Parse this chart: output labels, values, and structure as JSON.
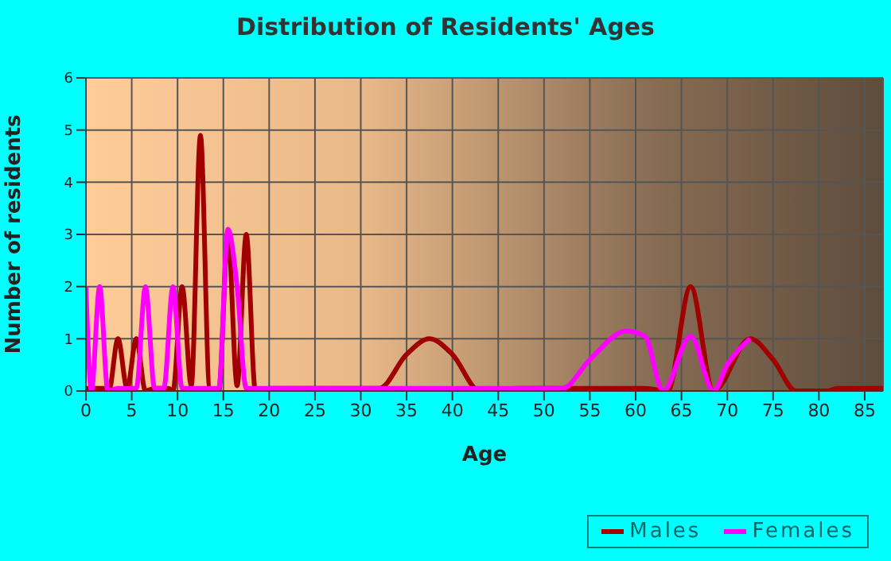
{
  "chart_data": {
    "type": "line",
    "title": "Distribution of Residents' Ages",
    "xlabel": "Age",
    "ylabel": "Number of residents",
    "xlim": [
      0,
      87
    ],
    "xticks": [
      0,
      5,
      10,
      15,
      20,
      25,
      30,
      35,
      40,
      45,
      50,
      55,
      60,
      65,
      70,
      75,
      80,
      85
    ],
    "ylim": [
      0,
      6
    ],
    "yticks": [
      0,
      1,
      2,
      3,
      4,
      5,
      6
    ],
    "grid": true,
    "legend": "bottom right",
    "marker": "none",
    "line_style": "solid",
    "series": [
      {
        "name": "Males",
        "color": "#a00000",
        "x": [
          0,
          2,
          2.5,
          3.5,
          4.5,
          5.5,
          6.5,
          7.5,
          9,
          9.5,
          10.5,
          11.5,
          12.5,
          13.5,
          14.5,
          15.5,
          16.5,
          17.5,
          18.5,
          20,
          32,
          35,
          37.5,
          40,
          43,
          47,
          61,
          63.5,
          66,
          68.5,
          72.5,
          75,
          77.5,
          81,
          82,
          87
        ],
        "values": [
          0.05,
          0.05,
          0,
          1,
          0.05,
          1,
          0,
          0.05,
          0.05,
          0,
          2,
          0.1,
          4.9,
          0.05,
          0,
          3,
          0.1,
          3,
          0,
          0.05,
          0.05,
          0.7,
          1,
          0.7,
          0,
          0.05,
          0.05,
          0,
          2,
          0,
          1,
          0.6,
          0,
          0,
          0.05,
          0.05
        ]
      },
      {
        "name": "Females",
        "color": "#ff00ff",
        "x": [
          0,
          0.6,
          1.5,
          2.4,
          3.5,
          5.5,
          6.5,
          7.5,
          8.5,
          9.5,
          10.5,
          14.5,
          15.5,
          16.5,
          17.5,
          20,
          52,
          55,
          59,
          61,
          63,
          66,
          68.5,
          70,
          72.5
        ],
        "values": [
          2,
          0,
          2,
          0,
          0.05,
          0.05,
          2,
          0.05,
          0.05,
          2,
          0.05,
          0.05,
          3.1,
          2,
          0.05,
          0.05,
          0.05,
          0.6,
          1.15,
          1.05,
          0,
          1.05,
          0,
          0.5,
          1
        ]
      }
    ]
  }
}
